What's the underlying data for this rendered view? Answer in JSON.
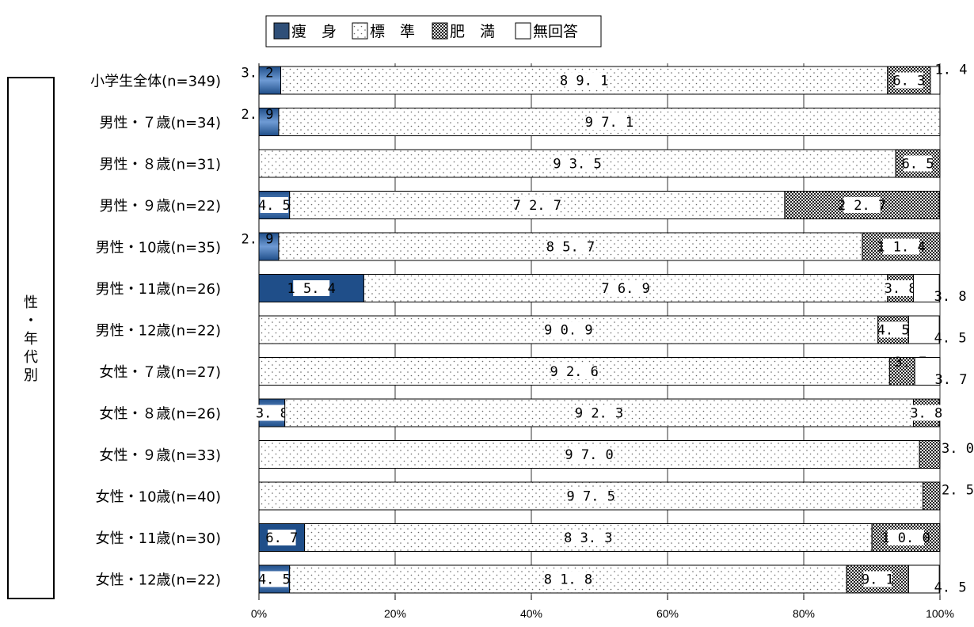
{
  "chart_data": {
    "type": "bar",
    "stacked": true,
    "orientation": "horizontal",
    "percent_axis": true,
    "xlim": [
      0,
      100
    ],
    "x_ticks": [
      "0%",
      "20%",
      "40%",
      "60%",
      "80%",
      "100%"
    ],
    "legend": {
      "placement": "top",
      "items": [
        "痩　身",
        "標　準",
        "肥　満",
        "無回答"
      ]
    },
    "group_label": "性・年代別",
    "categories": [
      "小学生全体(n=349)",
      "男性・７歳(n=34)",
      "男性・８歳(n=31)",
      "男性・９歳(n=22)",
      "男性・10歳(n=35)",
      "男性・11歳(n=26)",
      "男性・12歳(n=22)",
      "女性・７歳(n=27)",
      "女性・８歳(n=26)",
      "女性・９歳(n=33)",
      "女性・10歳(n=40)",
      "女性・11歳(n=30)",
      "女性・12歳(n=22)"
    ],
    "series": [
      {
        "name": "痩　身",
        "color": "#1f4e89",
        "values": [
          3.2,
          2.9,
          null,
          4.5,
          2.9,
          15.4,
          null,
          null,
          3.8,
          null,
          null,
          6.7,
          4.5
        ],
        "labels": [
          "3.2",
          "2.9",
          "",
          "4.5",
          "2.9",
          "15.4",
          "",
          "",
          "3.8",
          "",
          "",
          "6.7",
          "4.5"
        ]
      },
      {
        "name": "標　準",
        "color": "#ffffff",
        "values": [
          89.1,
          97.1,
          93.5,
          72.7,
          85.7,
          76.9,
          90.9,
          92.6,
          92.3,
          97.0,
          97.5,
          83.3,
          81.8
        ],
        "labels": [
          "89.1",
          "97.1",
          "93.5",
          "72.7",
          "85.7",
          "76.9",
          "90.9",
          "92.6",
          "92.3",
          "97.0",
          "97.5",
          "83.3",
          "81.8"
        ]
      },
      {
        "name": "肥　満",
        "color": "#333333",
        "values": [
          6.3,
          null,
          6.5,
          22.7,
          11.4,
          3.8,
          4.5,
          3.7,
          3.8,
          3.0,
          2.5,
          10.0,
          9.1
        ],
        "labels": [
          "6.3",
          "",
          "6.5",
          "22.7",
          "11.4",
          "3.8",
          "4.5",
          "3.7",
          "3.8",
          "3.0",
          "2.5",
          "10.0",
          "9.1"
        ]
      },
      {
        "name": "無回答",
        "color": "#ffffff",
        "values": [
          1.4,
          null,
          null,
          null,
          null,
          3.8,
          4.5,
          3.7,
          null,
          null,
          null,
          null,
          4.5
        ],
        "labels": [
          "1.4",
          "",
          "",
          "",
          "",
          "3.8",
          "4.5",
          "3.7",
          "",
          "",
          "",
          "",
          "4.5"
        ]
      }
    ]
  }
}
